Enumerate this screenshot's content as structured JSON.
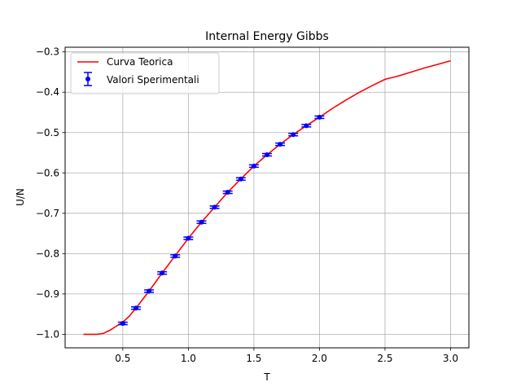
{
  "chart_data": {
    "type": "line",
    "title": "Internal Energy Gibbs",
    "xlabel": "T",
    "ylabel": "U/N",
    "xlim": [
      0.06,
      3.14
    ],
    "ylim": [
      -1.0335,
      -0.2885
    ],
    "xticks": [
      0.5,
      1.0,
      1.5,
      2.0,
      2.5,
      3.0
    ],
    "xtick_labels": [
      "0.5",
      "1.0",
      "1.5",
      "2.0",
      "2.5",
      "3.0"
    ],
    "yticks": [
      -1.0,
      -0.9,
      -0.8,
      -0.7,
      -0.6,
      -0.5,
      -0.4,
      -0.3
    ],
    "ytick_labels": [
      "−1.0",
      "−0.9",
      "−0.8",
      "−0.7",
      "−0.6",
      "−0.5",
      "−0.4",
      "−0.3"
    ],
    "grid": true,
    "legend_position": "top-left",
    "series": [
      {
        "name": "Curva Teorica",
        "kind": "line",
        "color": "#ff0000",
        "x": [
          0.2,
          0.25,
          0.3,
          0.35,
          0.4,
          0.45,
          0.5,
          0.55,
          0.6,
          0.7,
          0.8,
          0.9,
          1.0,
          1.1,
          1.2,
          1.3,
          1.4,
          1.5,
          1.6,
          1.7,
          1.8,
          1.9,
          2.0,
          2.1,
          2.2,
          2.3,
          2.4,
          2.5,
          2.6,
          2.7,
          2.8,
          2.9,
          3.0
        ],
        "y": [
          -1.0,
          -1.0,
          -1.0,
          -0.998,
          -0.99,
          -0.98,
          -0.97,
          -0.955,
          -0.935,
          -0.893,
          -0.848,
          -0.805,
          -0.762,
          -0.722,
          -0.685,
          -0.648,
          -0.615,
          -0.583,
          -0.555,
          -0.529,
          -0.505,
          -0.483,
          -0.462,
          -0.44,
          -0.42,
          -0.401,
          -0.384,
          -0.368,
          -0.36,
          -0.35,
          -0.34,
          -0.331,
          -0.322
        ]
      },
      {
        "name": "Valori Sperimentali",
        "kind": "errorbar",
        "color": "#0000ff",
        "x": [
          0.5,
          0.6,
          0.7,
          0.8,
          0.9,
          1.0,
          1.1,
          1.2,
          1.3,
          1.4,
          1.5,
          1.6,
          1.7,
          1.8,
          1.9,
          2.0
        ],
        "y": [
          -0.973,
          -0.935,
          -0.893,
          -0.848,
          -0.806,
          -0.762,
          -0.722,
          -0.685,
          -0.648,
          -0.615,
          -0.583,
          -0.555,
          -0.529,
          -0.505,
          -0.483,
          -0.462
        ],
        "yerr": [
          0.003,
          0.003,
          0.003,
          0.003,
          0.003,
          0.003,
          0.003,
          0.003,
          0.003,
          0.003,
          0.003,
          0.003,
          0.003,
          0.003,
          0.003,
          0.003
        ]
      }
    ]
  }
}
